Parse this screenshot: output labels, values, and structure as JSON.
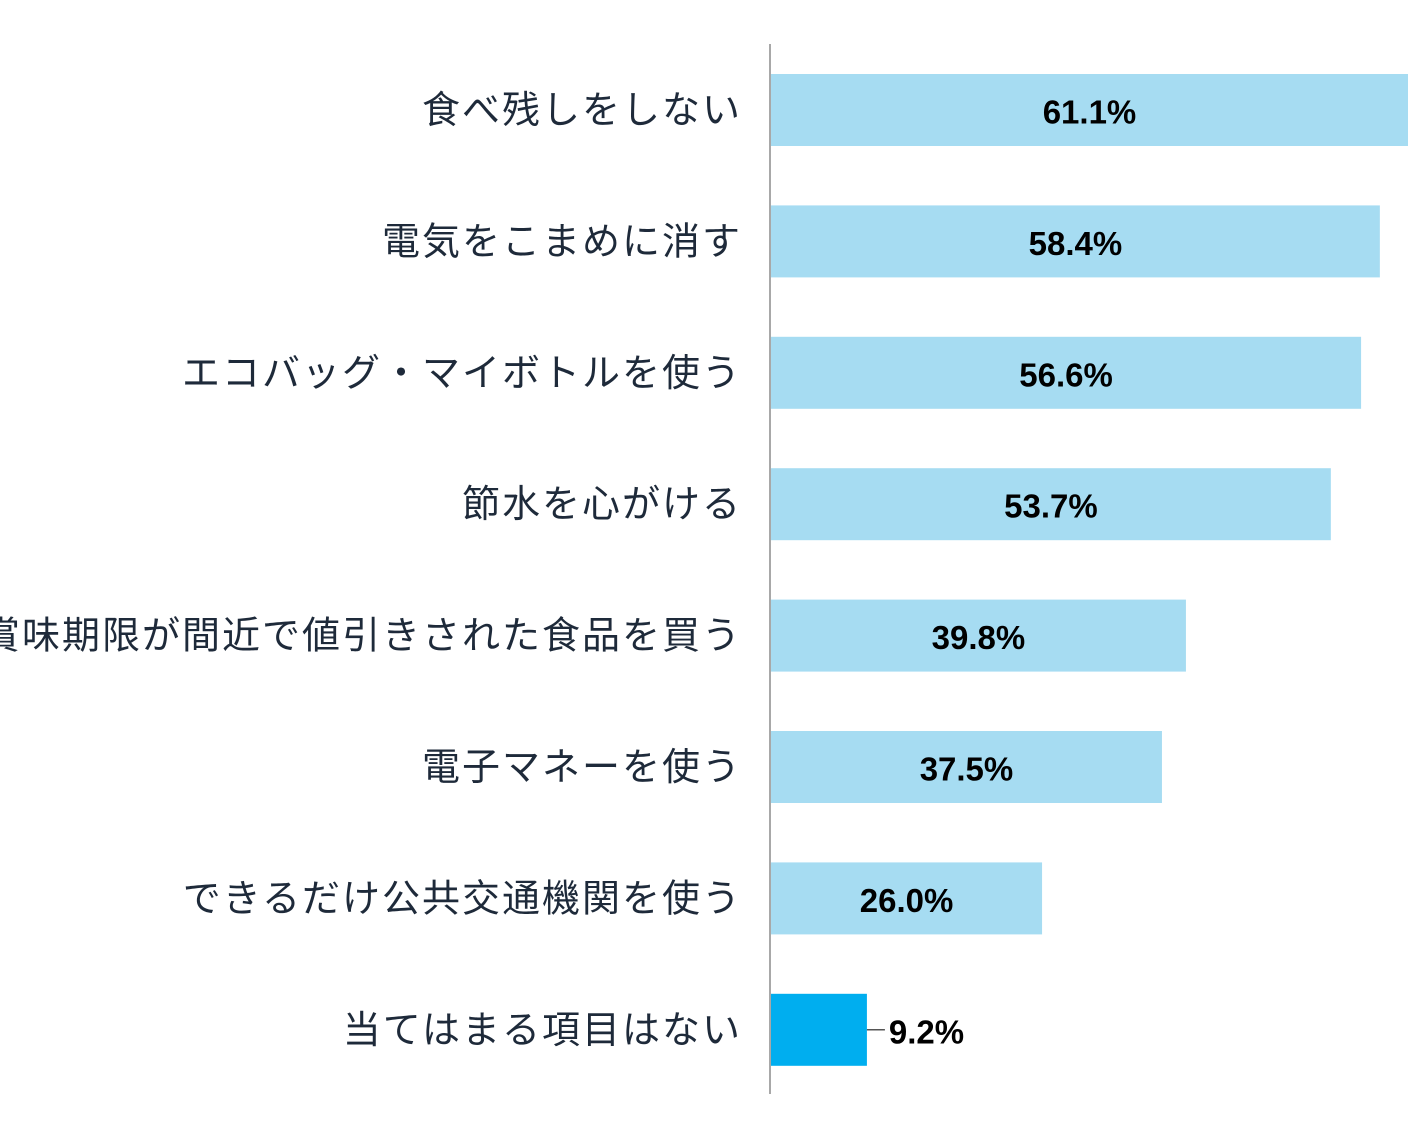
{
  "chart_data": {
    "type": "bar",
    "orientation": "horizontal",
    "categories": [
      "食べ残しをしない",
      "電気をこまめに消す",
      "エコバッグ・マイボトルを使う",
      "節水を心がける",
      "賞味期限が間近で値引きされた食品を買う",
      "電子マネーを使う",
      "できるだけ公共交通機関を使う",
      "当てはまる項目はない"
    ],
    "values": [
      61.1,
      58.4,
      56.6,
      53.7,
      39.8,
      37.5,
      26.0,
      9.2
    ],
    "value_labels": [
      "61.1%",
      "58.4%",
      "56.6%",
      "53.7%",
      "39.8%",
      "37.5%",
      "26.0%",
      "9.2%"
    ],
    "xlim": [
      0,
      61.1
    ],
    "grid": false,
    "legend": "none",
    "colors": {
      "bar": "#a6dcf2",
      "highlight_bar": "#00aeef",
      "axis": "#a8a8a8",
      "category_text": "#1e2a3a",
      "value_text": "#000000"
    },
    "highlight_index": 7
  }
}
